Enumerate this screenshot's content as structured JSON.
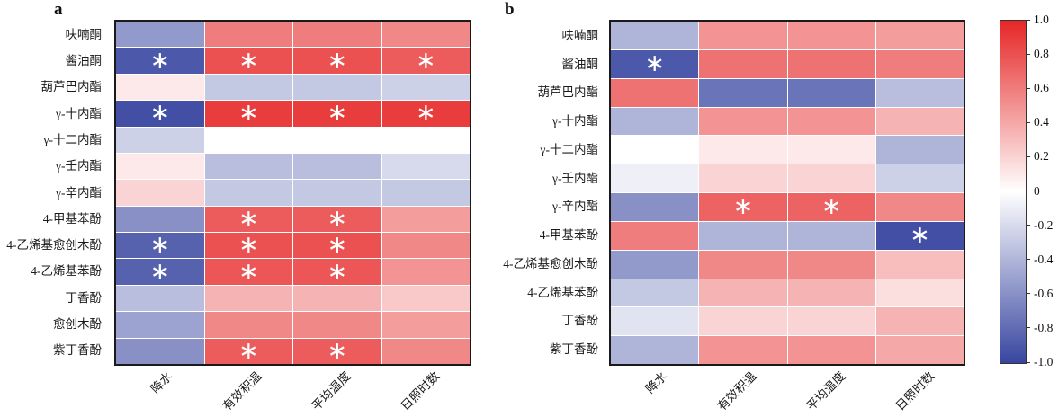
{
  "figure_type": "correlation-heatmaps",
  "significance_marker": "∗",
  "colorbar": {
    "max_color": "#e62626",
    "mid_color": "#ffffff",
    "min_color": "#3846a0",
    "range": [
      -1.0,
      1.0
    ],
    "tick_labels": [
      "1.0",
      "0.8",
      "0.6",
      "0.4",
      "0.2",
      "0",
      "-0.2",
      "-0.4",
      "-0.6",
      "-0.8",
      "-1.0"
    ]
  },
  "chart_data": [
    {
      "type": "heatmap",
      "panel_label": "a",
      "columns": [
        "降水",
        "有效积温",
        "平均温度",
        "日照时数"
      ],
      "rows": [
        "呋喃酮",
        "酱油酮",
        "葫芦巴内酯",
        "γ-十内酯",
        "γ-十二内酯",
        "γ-壬内酯",
        "γ-辛内酯",
        "4-甲基苯酚",
        "4-乙烯基愈创木酚",
        "4-乙烯基苯酚",
        "丁香酚",
        "愈创木酚",
        "紫丁香酚"
      ],
      "values": [
        [
          -0.55,
          0.6,
          0.6,
          0.55
        ],
        [
          -0.9,
          0.8,
          0.8,
          0.75
        ],
        [
          0.1,
          -0.3,
          -0.3,
          -0.25
        ],
        [
          -0.95,
          0.9,
          0.9,
          0.9
        ],
        [
          -0.25,
          0.0,
          0.0,
          0.0
        ],
        [
          0.1,
          -0.35,
          -0.35,
          -0.2
        ],
        [
          0.2,
          -0.3,
          -0.3,
          -0.3
        ],
        [
          -0.6,
          0.75,
          0.75,
          0.45
        ],
        [
          -0.85,
          0.8,
          0.8,
          0.55
        ],
        [
          -0.85,
          0.78,
          0.78,
          0.5
        ],
        [
          -0.35,
          0.35,
          0.35,
          0.25
        ],
        [
          -0.5,
          0.55,
          0.55,
          0.45
        ],
        [
          -0.6,
          0.75,
          0.75,
          0.55
        ]
      ],
      "significant": [
        [
          0,
          0,
          0,
          0
        ],
        [
          1,
          1,
          1,
          1
        ],
        [
          0,
          0,
          0,
          0
        ],
        [
          1,
          1,
          1,
          1
        ],
        [
          0,
          0,
          0,
          0
        ],
        [
          0,
          0,
          0,
          0
        ],
        [
          0,
          0,
          0,
          0
        ],
        [
          0,
          1,
          1,
          0
        ],
        [
          1,
          1,
          1,
          0
        ],
        [
          1,
          1,
          1,
          0
        ],
        [
          0,
          0,
          0,
          0
        ],
        [
          0,
          0,
          0,
          0
        ],
        [
          0,
          1,
          1,
          0
        ]
      ]
    },
    {
      "type": "heatmap",
      "panel_label": "b",
      "columns": [
        "降水",
        "有效积温",
        "平均温度",
        "日照时数"
      ],
      "rows": [
        "呋喃酮",
        "酱油酮",
        "葫芦巴内酯",
        "γ-十内酯",
        "γ-十二内酯",
        "γ-壬内酯",
        "γ-辛内酯",
        "4-甲基苯酚",
        "4-乙烯基愈创木酚",
        "4-乙烯基苯酚",
        "丁香酚",
        "紫丁香酚"
      ],
      "values": [
        [
          -0.4,
          0.5,
          0.5,
          0.45
        ],
        [
          -0.9,
          0.65,
          0.65,
          0.6
        ],
        [
          0.65,
          -0.75,
          -0.75,
          -0.35
        ],
        [
          -0.4,
          0.5,
          0.5,
          0.35
        ],
        [
          0.0,
          0.1,
          0.1,
          -0.4
        ],
        [
          -0.08,
          0.2,
          0.2,
          -0.25
        ],
        [
          -0.6,
          0.72,
          0.72,
          0.55
        ],
        [
          0.6,
          -0.4,
          -0.4,
          -0.95
        ],
        [
          -0.55,
          0.55,
          0.55,
          0.3
        ],
        [
          -0.3,
          0.35,
          0.35,
          0.15
        ],
        [
          -0.15,
          0.2,
          0.2,
          0.35
        ],
        [
          -0.4,
          0.5,
          0.5,
          0.4
        ]
      ],
      "significant": [
        [
          0,
          0,
          0,
          0
        ],
        [
          1,
          0,
          0,
          0
        ],
        [
          0,
          0,
          0,
          0
        ],
        [
          0,
          0,
          0,
          0
        ],
        [
          0,
          0,
          0,
          0
        ],
        [
          0,
          0,
          0,
          0
        ],
        [
          0,
          1,
          1,
          0
        ],
        [
          0,
          0,
          0,
          1
        ],
        [
          0,
          0,
          0,
          0
        ],
        [
          0,
          0,
          0,
          0
        ],
        [
          0,
          0,
          0,
          0
        ],
        [
          0,
          0,
          0,
          0
        ]
      ]
    }
  ]
}
